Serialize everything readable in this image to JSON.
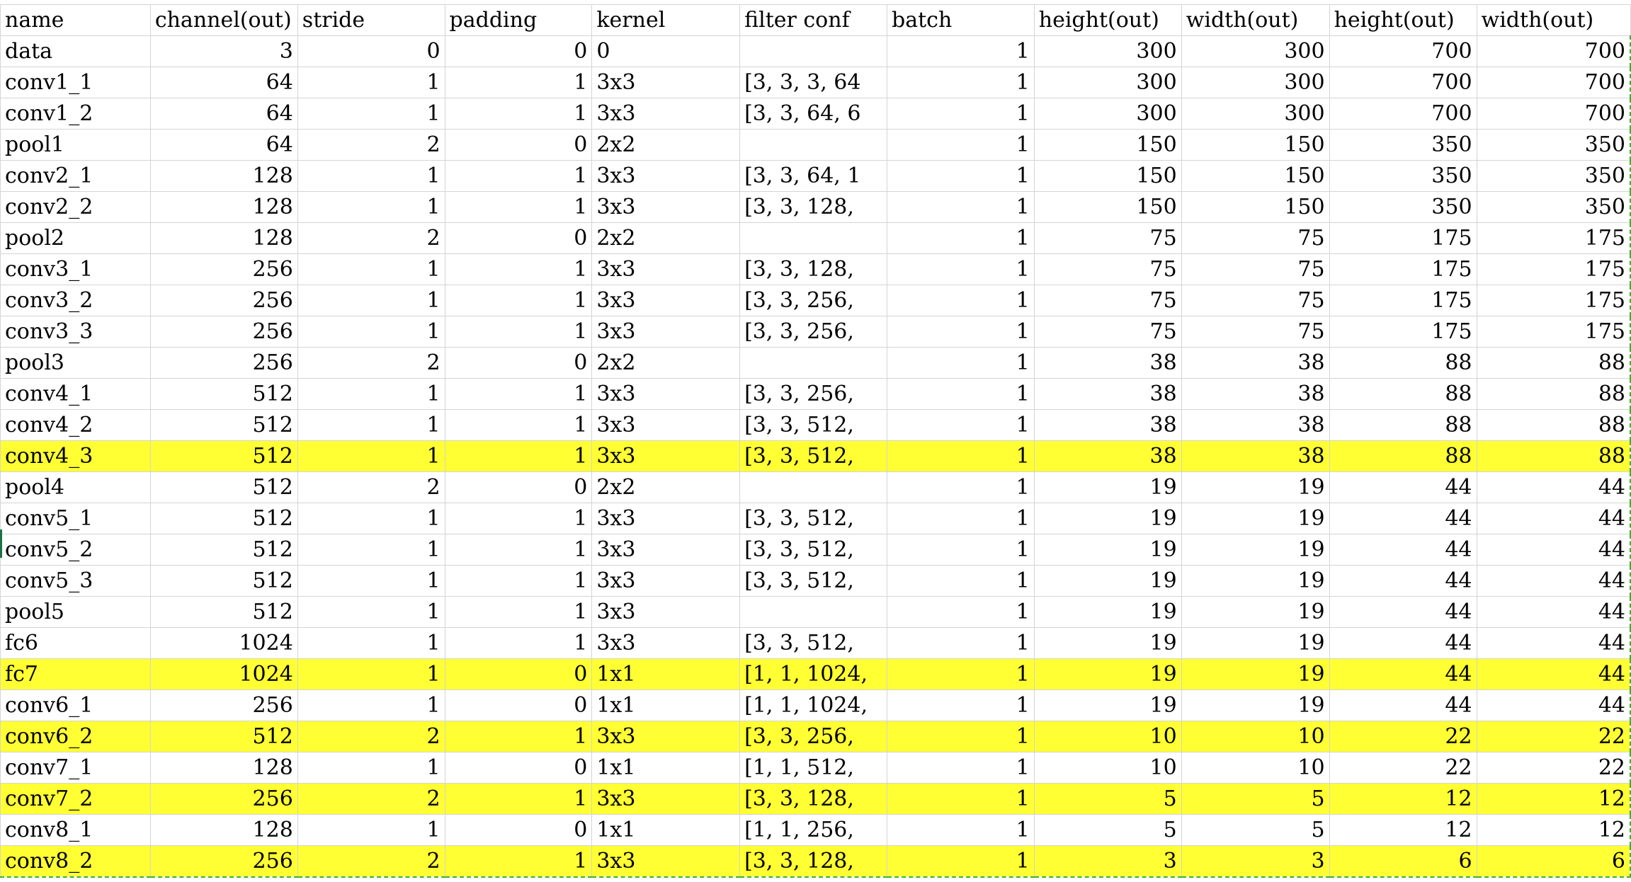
{
  "columns": [
    "name",
    "channel(out)",
    "stride",
    "padding",
    "kernel",
    "filter conf",
    "batch",
    "height(out)",
    "width(out)",
    "height(out)",
    "width(out)"
  ],
  "colors": {
    "highlight": "#ffff33",
    "grid": "#d4d4d4",
    "selection": "#3fae2a"
  },
  "rows": [
    {
      "name": "data",
      "channel": "3",
      "stride": "0",
      "padding": "0",
      "kernel": "0",
      "filter": "",
      "batch": "1",
      "h1": "300",
      "w1": "300",
      "h2": "700",
      "w2": "700",
      "highlight": false
    },
    {
      "name": "conv1_1",
      "channel": "64",
      "stride": "1",
      "padding": "1",
      "kernel": "3x3",
      "filter": "[3, 3, 3, 64",
      "batch": "1",
      "h1": "300",
      "w1": "300",
      "h2": "700",
      "w2": "700",
      "highlight": false
    },
    {
      "name": "conv1_2",
      "channel": "64",
      "stride": "1",
      "padding": "1",
      "kernel": "3x3",
      "filter": "[3, 3, 64, 6",
      "batch": "1",
      "h1": "300",
      "w1": "300",
      "h2": "700",
      "w2": "700",
      "highlight": false
    },
    {
      "name": "pool1",
      "channel": "64",
      "stride": "2",
      "padding": "0",
      "kernel": "2x2",
      "filter": "",
      "batch": "1",
      "h1": "150",
      "w1": "150",
      "h2": "350",
      "w2": "350",
      "highlight": false
    },
    {
      "name": "conv2_1",
      "channel": "128",
      "stride": "1",
      "padding": "1",
      "kernel": "3x3",
      "filter": "[3, 3, 64, 1",
      "batch": "1",
      "h1": "150",
      "w1": "150",
      "h2": "350",
      "w2": "350",
      "highlight": false
    },
    {
      "name": "conv2_2",
      "channel": "128",
      "stride": "1",
      "padding": "1",
      "kernel": "3x3",
      "filter": "[3, 3, 128,",
      "batch": "1",
      "h1": "150",
      "w1": "150",
      "h2": "350",
      "w2": "350",
      "highlight": false
    },
    {
      "name": "pool2",
      "channel": "128",
      "stride": "2",
      "padding": "0",
      "kernel": "2x2",
      "filter": "",
      "batch": "1",
      "h1": "75",
      "w1": "75",
      "h2": "175",
      "w2": "175",
      "highlight": false
    },
    {
      "name": "conv3_1",
      "channel": "256",
      "stride": "1",
      "padding": "1",
      "kernel": "3x3",
      "filter": "[3, 3, 128,",
      "batch": "1",
      "h1": "75",
      "w1": "75",
      "h2": "175",
      "w2": "175",
      "highlight": false
    },
    {
      "name": "conv3_2",
      "channel": "256",
      "stride": "1",
      "padding": "1",
      "kernel": "3x3",
      "filter": "[3, 3, 256,",
      "batch": "1",
      "h1": "75",
      "w1": "75",
      "h2": "175",
      "w2": "175",
      "highlight": false
    },
    {
      "name": "conv3_3",
      "channel": "256",
      "stride": "1",
      "padding": "1",
      "kernel": "3x3",
      "filter": "[3, 3, 256,",
      "batch": "1",
      "h1": "75",
      "w1": "75",
      "h2": "175",
      "w2": "175",
      "highlight": false
    },
    {
      "name": "pool3",
      "channel": "256",
      "stride": "2",
      "padding": "0",
      "kernel": "2x2",
      "filter": "",
      "batch": "1",
      "h1": "38",
      "w1": "38",
      "h2": "88",
      "w2": "88",
      "highlight": false
    },
    {
      "name": "conv4_1",
      "channel": "512",
      "stride": "1",
      "padding": "1",
      "kernel": "3x3",
      "filter": "[3, 3, 256,",
      "batch": "1",
      "h1": "38",
      "w1": "38",
      "h2": "88",
      "w2": "88",
      "highlight": false
    },
    {
      "name": "conv4_2",
      "channel": "512",
      "stride": "1",
      "padding": "1",
      "kernel": "3x3",
      "filter": "[3, 3, 512,",
      "batch": "1",
      "h1": "38",
      "w1": "38",
      "h2": "88",
      "w2": "88",
      "highlight": false
    },
    {
      "name": "conv4_3",
      "channel": "512",
      "stride": "1",
      "padding": "1",
      "kernel": "3x3",
      "filter": "[3, 3, 512,",
      "batch": "1",
      "h1": "38",
      "w1": "38",
      "h2": "88",
      "w2": "88",
      "highlight": true
    },
    {
      "name": "pool4",
      "channel": "512",
      "stride": "2",
      "padding": "0",
      "kernel": "2x2",
      "filter": "",
      "batch": "1",
      "h1": "19",
      "w1": "19",
      "h2": "44",
      "w2": "44",
      "highlight": false
    },
    {
      "name": "conv5_1",
      "channel": "512",
      "stride": "1",
      "padding": "1",
      "kernel": "3x3",
      "filter": "[3, 3, 512,",
      "batch": "1",
      "h1": "19",
      "w1": "19",
      "h2": "44",
      "w2": "44",
      "highlight": false
    },
    {
      "name": "conv5_2",
      "channel": "512",
      "stride": "1",
      "padding": "1",
      "kernel": "3x3",
      "filter": "[3, 3, 512,",
      "batch": "1",
      "h1": "19",
      "w1": "19",
      "h2": "44",
      "w2": "44",
      "highlight": false
    },
    {
      "name": "conv5_3",
      "channel": "512",
      "stride": "1",
      "padding": "1",
      "kernel": "3x3",
      "filter": "[3, 3, 512,",
      "batch": "1",
      "h1": "19",
      "w1": "19",
      "h2": "44",
      "w2": "44",
      "highlight": false
    },
    {
      "name": "pool5",
      "channel": "512",
      "stride": "1",
      "padding": "1",
      "kernel": "3x3",
      "filter": "",
      "batch": "1",
      "h1": "19",
      "w1": "19",
      "h2": "44",
      "w2": "44",
      "highlight": false
    },
    {
      "name": "fc6",
      "channel": "1024",
      "stride": "1",
      "padding": "1",
      "kernel": "3x3",
      "filter": "[3, 3, 512,",
      "batch": "1",
      "h1": "19",
      "w1": "19",
      "h2": "44",
      "w2": "44",
      "highlight": false
    },
    {
      "name": "fc7",
      "channel": "1024",
      "stride": "1",
      "padding": "0",
      "kernel": "1x1",
      "filter": "[1, 1, 1024,",
      "batch": "1",
      "h1": "19",
      "w1": "19",
      "h2": "44",
      "w2": "44",
      "highlight": true
    },
    {
      "name": "conv6_1",
      "channel": "256",
      "stride": "1",
      "padding": "0",
      "kernel": "1x1",
      "filter": "[1, 1, 1024,",
      "batch": "1",
      "h1": "19",
      "w1": "19",
      "h2": "44",
      "w2": "44",
      "highlight": false
    },
    {
      "name": "conv6_2",
      "channel": "512",
      "stride": "2",
      "padding": "1",
      "kernel": "3x3",
      "filter": "[3, 3, 256,",
      "batch": "1",
      "h1": "10",
      "w1": "10",
      "h2": "22",
      "w2": "22",
      "highlight": true
    },
    {
      "name": "conv7_1",
      "channel": "128",
      "stride": "1",
      "padding": "0",
      "kernel": "1x1",
      "filter": "[1, 1, 512,",
      "batch": "1",
      "h1": "10",
      "w1": "10",
      "h2": "22",
      "w2": "22",
      "highlight": false
    },
    {
      "name": "conv7_2",
      "channel": "256",
      "stride": "2",
      "padding": "1",
      "kernel": "3x3",
      "filter": "[3, 3, 128,",
      "batch": "1",
      "h1": "5",
      "w1": "5",
      "h2": "12",
      "w2": "12",
      "highlight": true
    },
    {
      "name": "conv8_1",
      "channel": "128",
      "stride": "1",
      "padding": "0",
      "kernel": "1x1",
      "filter": "[1, 1, 256,",
      "batch": "1",
      "h1": "5",
      "w1": "5",
      "h2": "12",
      "w2": "12",
      "highlight": false
    },
    {
      "name": "conv8_2",
      "channel": "256",
      "stride": "2",
      "padding": "1",
      "kernel": "3x3",
      "filter": "[3, 3, 128,",
      "batch": "1",
      "h1": "3",
      "w1": "3",
      "h2": "6",
      "w2": "6",
      "highlight": true
    }
  ]
}
